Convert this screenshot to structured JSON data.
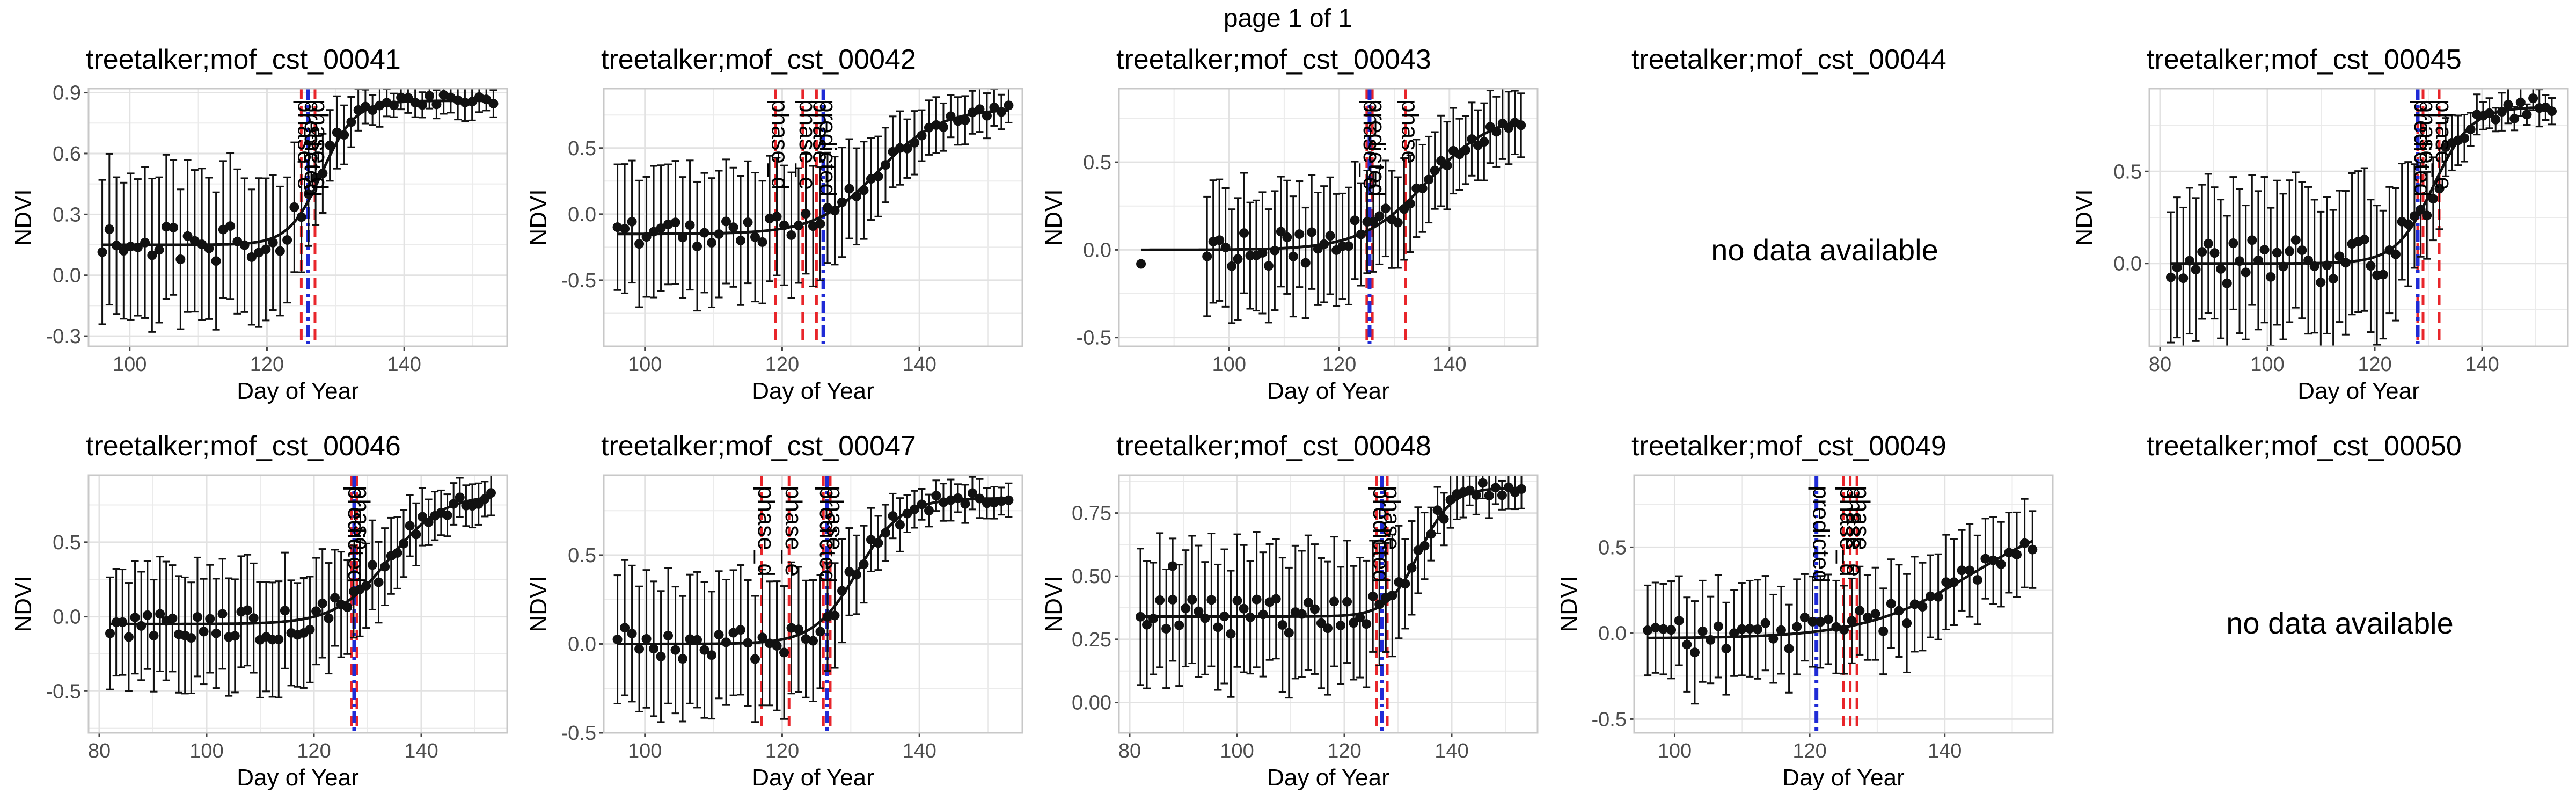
{
  "page_title": "page 1 of 1",
  "colors": {
    "panel_border": "#c8c8c8",
    "grid": "#ebebeb",
    "points": "#111111",
    "fit_line": "#111111",
    "phase_line": "#e8252a",
    "predicted_line": "#1f2bd6"
  },
  "chart_data": [
    {
      "type": "scatter",
      "title": "treetalker;mof_cst_00041",
      "xlabel": "Day of Year",
      "ylabel": "NDVI",
      "has_data": true,
      "xlim": [
        94,
        155
      ],
      "ylim": [
        -0.35,
        0.92
      ],
      "xticks": [
        100,
        120,
        140
      ],
      "yticks": [
        -0.3,
        0.0,
        0.3,
        0.6,
        0.9
      ],
      "ytick_labels": [
        "-0.3",
        "0.0",
        "0.3",
        "0.6",
        "0.9"
      ],
      "grid": true,
      "series": [
        {
          "kind": "points_with_error_bars",
          "x_start": 96,
          "x_end": 153,
          "n": 56,
          "baseline": 0.15,
          "plateau": 0.86,
          "mid": 128,
          "scale": 2.4,
          "noise_amp": 0.09,
          "err_early": 0.33,
          "err_late": 0.05,
          "seed": 41
        }
      ],
      "vlines": [
        {
          "x": 125,
          "color": "red",
          "style": "dashed",
          "label": "phase_e"
        },
        {
          "x": 127,
          "color": "red",
          "style": "dashed",
          "label": "phase_d"
        },
        {
          "x": 126,
          "color": "blue",
          "style": "dashdot",
          "label": "predicted"
        }
      ]
    },
    {
      "type": "scatter",
      "title": "treetalker;mof_cst_00042",
      "xlabel": "Day of Year",
      "ylabel": "NDVI",
      "has_data": true,
      "xlim": [
        94,
        155
      ],
      "ylim": [
        -1.0,
        0.95
      ],
      "xticks": [
        100,
        120,
        140
      ],
      "yticks": [
        -0.5,
        0.0,
        0.5
      ],
      "ytick_labels": [
        "-0.5",
        "0.0",
        "0.5"
      ],
      "grid": true,
      "series": [
        {
          "kind": "points_with_error_bars",
          "x_start": 96,
          "x_end": 153,
          "n": 55,
          "baseline": -0.15,
          "plateau": 0.8,
          "mid": 134,
          "scale": 4.5,
          "noise_amp": 0.1,
          "err_early": 0.45,
          "err_late": 0.12,
          "seed": 42
        }
      ],
      "vlines": [
        {
          "x": 119,
          "color": "red",
          "style": "dashed",
          "label": "phase_d"
        },
        {
          "x": 123,
          "color": "red",
          "style": "dashed",
          "label": "phase_e"
        },
        {
          "x": 125,
          "color": "red",
          "style": "dashed",
          "label": "phase"
        },
        {
          "x": 126,
          "color": "blue",
          "style": "dashdot",
          "label": "predicted"
        }
      ]
    },
    {
      "type": "scatter",
      "title": "treetalker;mof_cst_00043",
      "xlabel": "Day of Year",
      "ylabel": "NDVI",
      "has_data": true,
      "xlim": [
        80,
        156
      ],
      "ylim": [
        -0.55,
        0.92
      ],
      "xticks": [
        100,
        120,
        140
      ],
      "yticks": [
        -0.5,
        0.0,
        0.5
      ],
      "ytick_labels": [
        "-0.5",
        "0.0",
        "0.5"
      ],
      "grid": true,
      "series": [
        {
          "kind": "points_with_error_bars",
          "x_start": 96,
          "x_end": 153,
          "n": 52,
          "baseline": 0.0,
          "plateau": 0.78,
          "mid": 136,
          "scale": 6.0,
          "noise_amp": 0.1,
          "err_early": 0.3,
          "err_late": 0.15,
          "seed": 43,
          "extra_points": [
            {
              "x": 84,
              "y": -0.08
            }
          ]
        }
      ],
      "vlines": [
        {
          "x": 125,
          "color": "red",
          "style": "dashed",
          "label": "phase_e"
        },
        {
          "x": 126,
          "color": "red",
          "style": "dashed",
          "label": "predicted"
        },
        {
          "x": 132,
          "color": "red",
          "style": "dashed",
          "label": "phase"
        },
        {
          "x": 125.5,
          "color": "blue",
          "style": "dashdot",
          "label": ""
        }
      ]
    },
    {
      "type": "scatter",
      "title": "treetalker;mof_cst_00044",
      "has_data": false,
      "message": "no data available"
    },
    {
      "type": "scatter",
      "title": "treetalker;mof_cst_00045",
      "xlabel": "Day of Year",
      "ylabel": "NDVI",
      "has_data": true,
      "xlim": [
        78,
        156
      ],
      "ylim": [
        -0.45,
        0.95
      ],
      "xticks": [
        80,
        100,
        120,
        140
      ],
      "yticks": [
        0.0,
        0.5
      ],
      "ytick_labels": [
        "0.0",
        "0.5"
      ],
      "grid": true,
      "series": [
        {
          "kind": "points_with_error_bars",
          "x_start": 82,
          "x_end": 153,
          "n": 62,
          "baseline": 0.0,
          "plateau": 0.85,
          "mid": 131,
          "scale": 3.5,
          "noise_amp": 0.13,
          "err_early": 0.35,
          "err_late": 0.05,
          "seed": 45
        }
      ],
      "vlines": [
        {
          "x": 128,
          "color": "red",
          "style": "dashed",
          "label": "predicted"
        },
        {
          "x": 129,
          "color": "red",
          "style": "dashed",
          "label": "phase"
        },
        {
          "x": 132,
          "color": "red",
          "style": "dashed",
          "label": "phase_e"
        },
        {
          "x": 128,
          "color": "blue",
          "style": "dashdot",
          "label": ""
        }
      ]
    },
    {
      "type": "scatter",
      "title": "treetalker;mof_cst_00046",
      "xlabel": "Day of Year",
      "ylabel": "NDVI",
      "has_data": true,
      "xlim": [
        78,
        156
      ],
      "ylim": [
        -0.78,
        0.95
      ],
      "xticks": [
        80,
        100,
        120,
        140
      ],
      "yticks": [
        -0.5,
        0.0,
        0.5
      ],
      "ytick_labels": [
        "-0.5",
        "0.0",
        "0.5"
      ],
      "grid": true,
      "series": [
        {
          "kind": "points_with_error_bars",
          "x_start": 82,
          "x_end": 153,
          "n": 62,
          "baseline": -0.05,
          "plateau": 0.82,
          "mid": 134,
          "scale": 5.0,
          "noise_amp": 0.12,
          "err_early": 0.35,
          "err_late": 0.1,
          "seed": 46
        }
      ],
      "vlines": [
        {
          "x": 127,
          "color": "red",
          "style": "dashed",
          "label": "predicted"
        },
        {
          "x": 128,
          "color": "red",
          "style": "dashed",
          "label": "phase"
        },
        {
          "x": 127.5,
          "color": "blue",
          "style": "dashdot",
          "label": ""
        }
      ]
    },
    {
      "type": "scatter",
      "title": "treetalker;mof_cst_00047",
      "xlabel": "Day of Year",
      "ylabel": "NDVI",
      "has_data": true,
      "xlim": [
        94,
        155
      ],
      "ylim": [
        -0.5,
        0.95
      ],
      "xticks": [
        100,
        120,
        140
      ],
      "yticks": [
        -0.5,
        0.0,
        0.5
      ],
      "ytick_labels": [
        "-0.5",
        "0.0",
        "0.5"
      ],
      "grid": true,
      "series": [
        {
          "kind": "points_with_error_bars",
          "x_start": 96,
          "x_end": 153,
          "n": 55,
          "baseline": 0.0,
          "plateau": 0.82,
          "mid": 131,
          "scale": 3.2,
          "noise_amp": 0.1,
          "err_early": 0.35,
          "err_late": 0.07,
          "seed": 47
        }
      ],
      "vlines": [
        {
          "x": 117,
          "color": "red",
          "style": "dashed",
          "label": "phase_d"
        },
        {
          "x": 121,
          "color": "red",
          "style": "dashed",
          "label": "phase_e"
        },
        {
          "x": 126,
          "color": "red",
          "style": "dashed",
          "label": "predicted"
        },
        {
          "x": 127,
          "color": "red",
          "style": "dashed",
          "label": "phase"
        },
        {
          "x": 126.5,
          "color": "blue",
          "style": "dashdot",
          "label": ""
        }
      ]
    },
    {
      "type": "scatter",
      "title": "treetalker;mof_cst_00048",
      "xlabel": "Day of Year",
      "ylabel": "NDVI",
      "has_data": true,
      "xlim": [
        78,
        156
      ],
      "ylim": [
        -0.12,
        0.9
      ],
      "xticks": [
        80,
        100,
        120,
        140
      ],
      "yticks": [
        0.0,
        0.25,
        0.5,
        0.75
      ],
      "ytick_labels": [
        "0.00",
        "0.25",
        "0.50",
        "0.75"
      ],
      "grid": true,
      "series": [
        {
          "kind": "points_with_error_bars",
          "x_start": 82,
          "x_end": 153,
          "n": 60,
          "baseline": 0.34,
          "plateau": 0.85,
          "mid": 134,
          "scale": 3.0,
          "noise_amp": 0.07,
          "err_early": 0.22,
          "err_late": 0.04,
          "seed": 48,
          "extra_points": [
            {
              "x": 88,
              "y": 0.54
            }
          ]
        }
      ],
      "vlines": [
        {
          "x": 126,
          "color": "red",
          "style": "dashed",
          "label": "predicted"
        },
        {
          "x": 128,
          "color": "red",
          "style": "dashed",
          "label": "phase"
        },
        {
          "x": 127,
          "color": "blue",
          "style": "dashdot",
          "label": ""
        }
      ]
    },
    {
      "type": "scatter",
      "title": "treetalker;mof_cst_00049",
      "xlabel": "Day of Year",
      "ylabel": "NDVI",
      "has_data": true,
      "xlim": [
        94,
        156
      ],
      "ylim": [
        -0.58,
        0.92
      ],
      "xticks": [
        100,
        120,
        140
      ],
      "yticks": [
        -0.5,
        0.0,
        0.5
      ],
      "ytick_labels": [
        "-0.5",
        "0.0",
        "0.5"
      ],
      "grid": true,
      "series": [
        {
          "kind": "points_with_error_bars",
          "x_start": 96,
          "x_end": 153,
          "n": 50,
          "baseline": -0.03,
          "plateau": 0.72,
          "mid": 144,
          "scale": 8.0,
          "noise_amp": 0.1,
          "err_early": 0.25,
          "err_late": 0.2,
          "seed": 49
        }
      ],
      "vlines": [
        {
          "x": 121,
          "color": "blue",
          "style": "dashdot",
          "label": "predicted"
        },
        {
          "x": 125,
          "color": "red",
          "style": "dashed",
          "label": "phase_d"
        },
        {
          "x": 126,
          "color": "red",
          "style": "dashed",
          "label": "phase_e"
        },
        {
          "x": 127,
          "color": "red",
          "style": "dashed",
          "label": "phase"
        }
      ]
    },
    {
      "type": "scatter",
      "title": "treetalker;mof_cst_00050",
      "has_data": false,
      "message": "no data available"
    }
  ]
}
